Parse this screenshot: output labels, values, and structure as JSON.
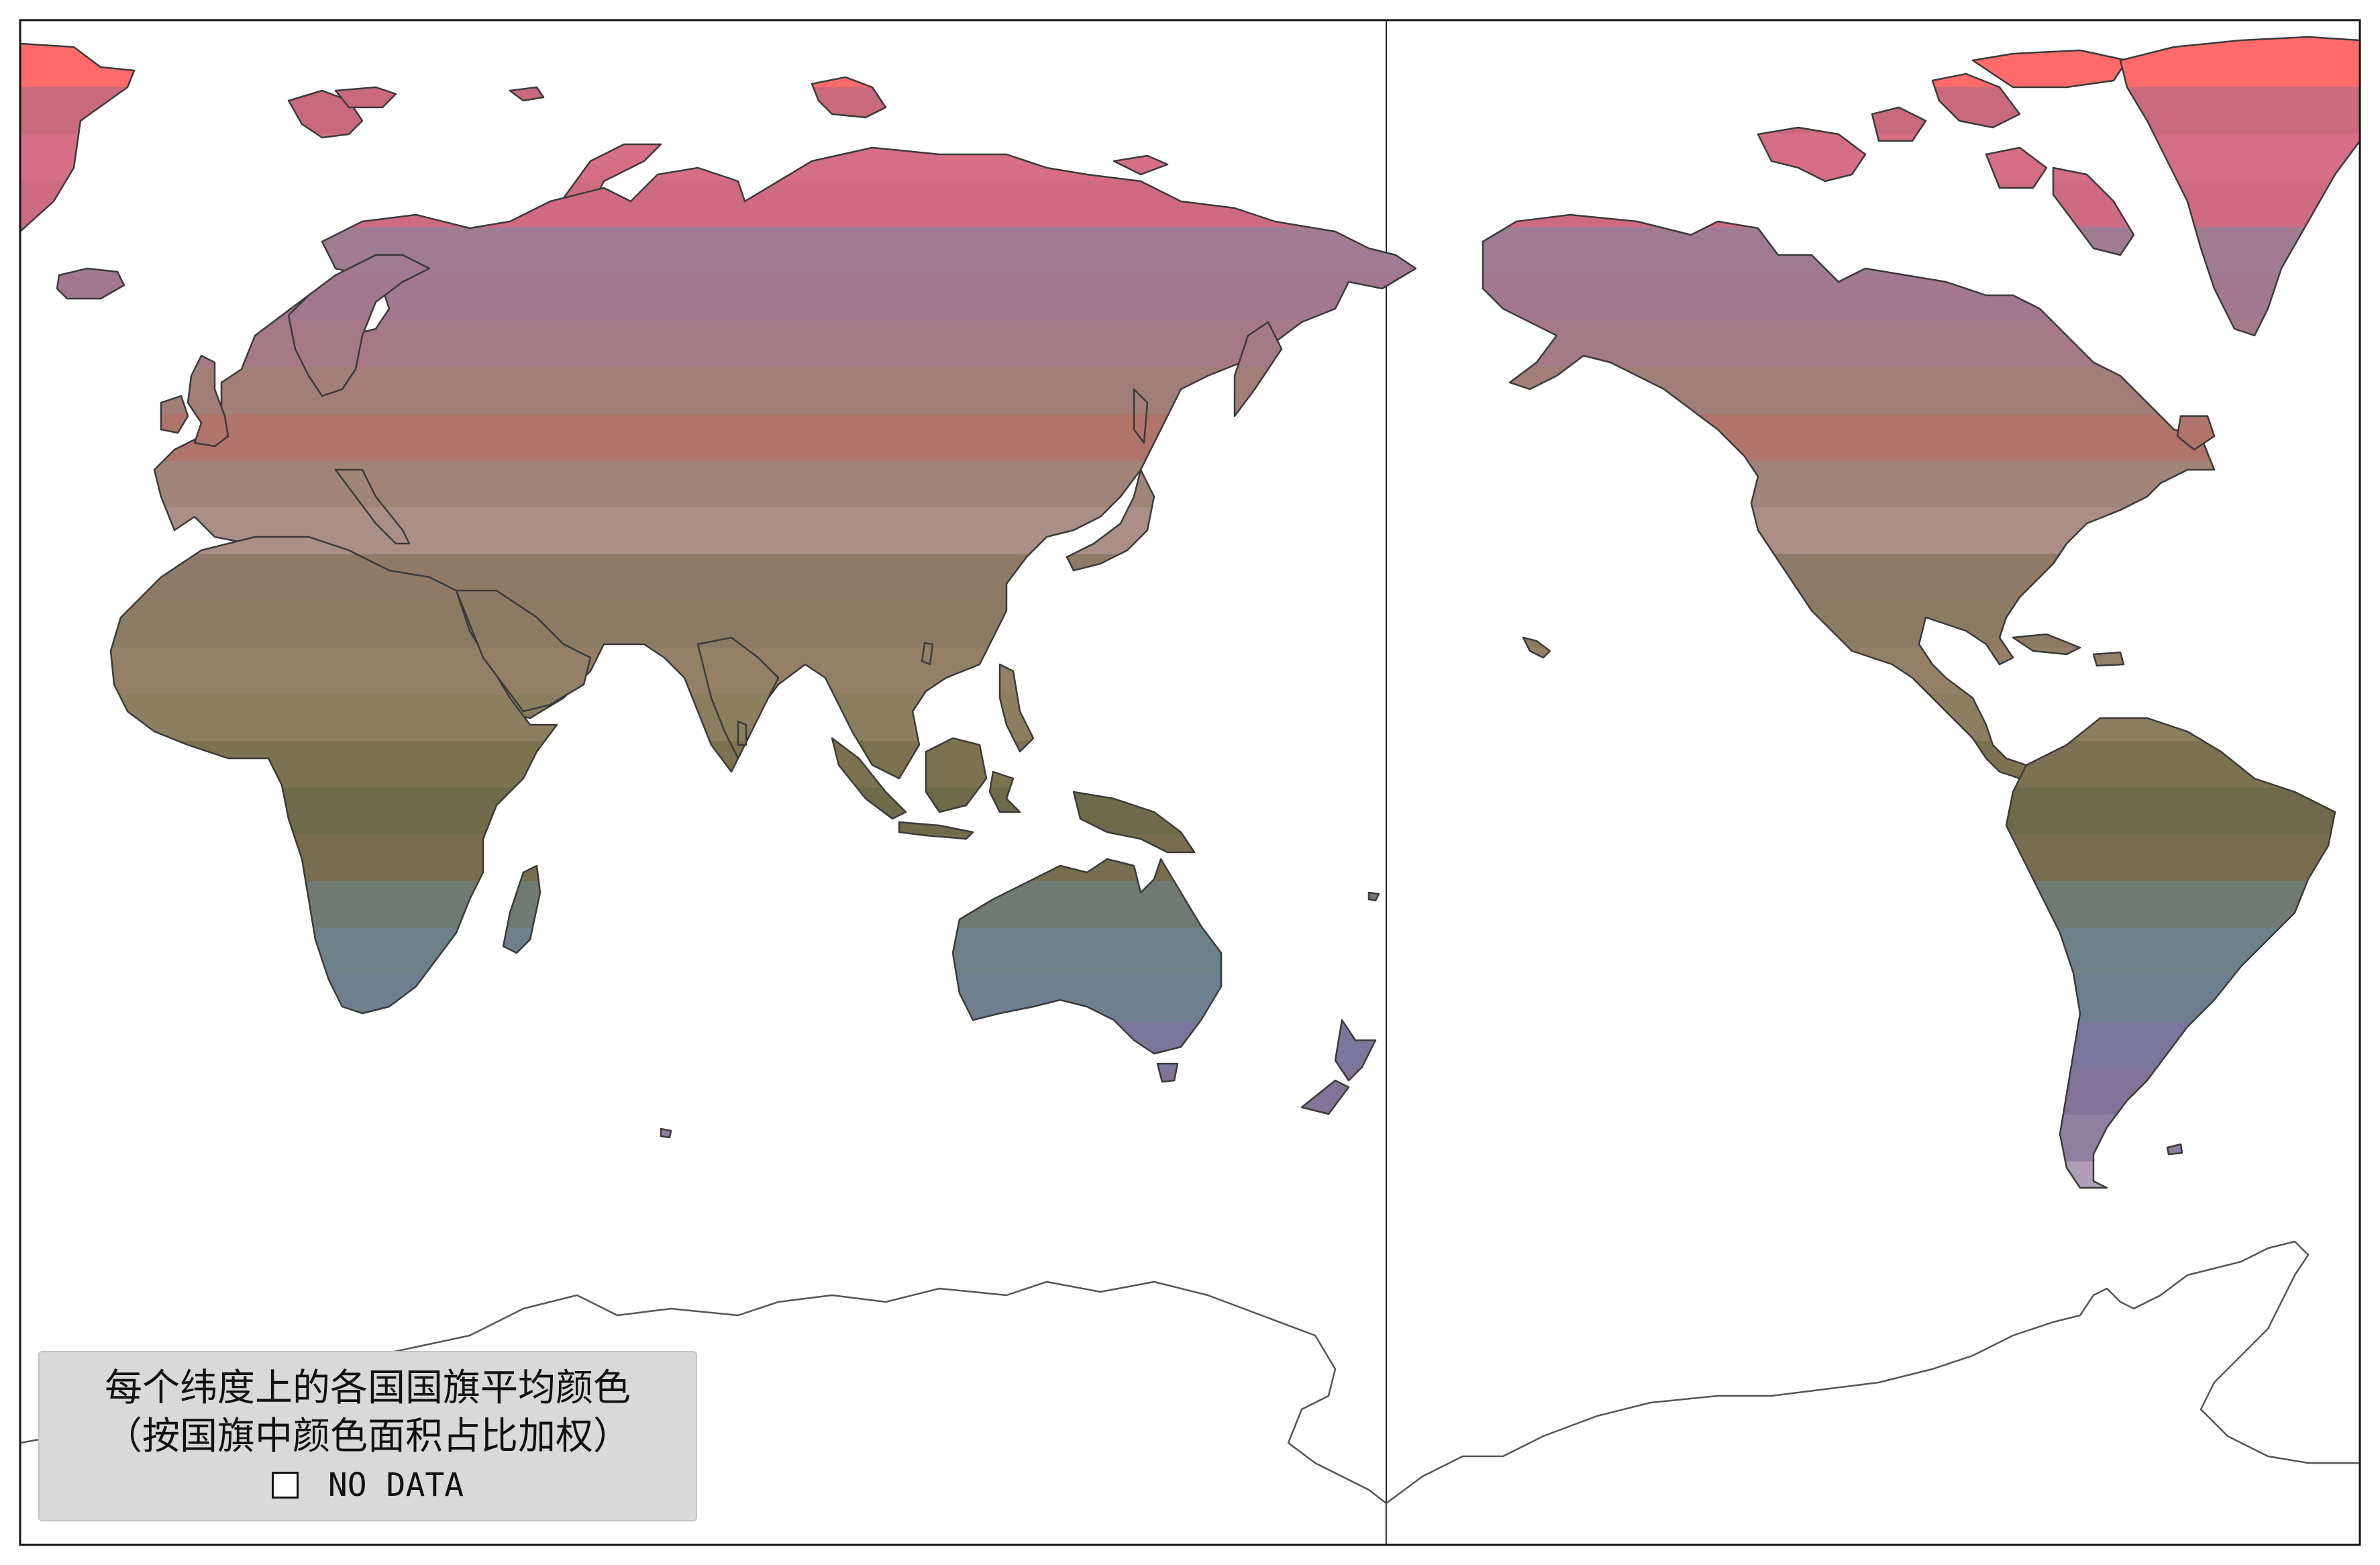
{
  "legend": {
    "title_line_1": "每个纬度上的各国国旗平均颜色",
    "title_line_2": "（按国旗中颜色面积占比加权）",
    "no_data_label": "NO DATA"
  },
  "colors": {
    "background": "#ffffff",
    "frame": "#111111",
    "land_outline": "#3a3a3a",
    "antarctica_outline": "#555555",
    "legend_bg": "#d9d9d9"
  },
  "latitude_color_bands": [
    "#ff6b6b",
    "#c96a7c",
    "#d66f85",
    "#cf6b80",
    "#9f7c93",
    "#a2788f",
    "#a57a86",
    "#a17f78",
    "#b0746a",
    "#a08478",
    "#ab8f86",
    "#8f7a68",
    "#8c7b63",
    "#938066",
    "#8c7f60",
    "#7d7250",
    "#6e6a4a",
    "#786e4f",
    "#6f7a72",
    "#6d8188",
    "#6e7f90",
    "#7b779c",
    "#817498",
    "#8e80a0",
    "#b09db6"
  ]
}
